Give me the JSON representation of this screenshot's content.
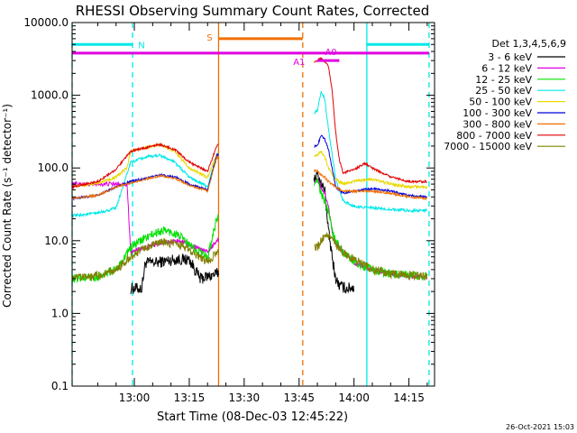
{
  "chart_data": {
    "type": "line",
    "title": "RHESSI Observing Summary Count Rates, Corrected",
    "xlabel": "Start Time (08-Dec-03 12:45:22)",
    "ylabel": "Corrected Count Rate (s⁻¹ detector⁻¹)",
    "y_scale": "log",
    "ylim": [
      0.1,
      10000
    ],
    "xlim_minutes": [
      -2,
      97
    ],
    "x_ticks": [
      {
        "label": "13:00",
        "t": 15
      },
      {
        "label": "13:15",
        "t": 30
      },
      {
        "label": "13:30",
        "t": 45
      },
      {
        "label": "13:45",
        "t": 60
      },
      {
        "label": "14:00",
        "t": 75
      },
      {
        "label": "14:15",
        "t": 90
      }
    ],
    "y_ticks": [
      {
        "label": "0.1",
        "v": 0.1
      },
      {
        "label": "1.0",
        "v": 1
      },
      {
        "label": "10.0",
        "v": 10
      },
      {
        "label": "100.0",
        "v": 100
      },
      {
        "label": "1000.0",
        "v": 1000
      },
      {
        "label": "10000.0",
        "v": 10000
      }
    ],
    "legend_title": "Det 1,3,4,5,6,9",
    "legend_position": "right",
    "gap_minutes": [
      38,
      64
    ],
    "series": [
      {
        "name": "3 - 6 keV",
        "color": "#000000",
        "noise": 0.16,
        "x": [
          14,
          17,
          18,
          21,
          26,
          30,
          33,
          37.5,
          65,
          66,
          67,
          68,
          69,
          70,
          71,
          72,
          73,
          75
        ],
        "y": [
          2.2,
          2.2,
          5,
          5,
          5.5,
          5.5,
          3,
          3.5,
          80,
          60,
          50,
          14,
          6,
          3,
          2.4,
          2.3,
          2.2,
          2.3
        ]
      },
      {
        "name": "6 - 12 keV",
        "color": "#e000e0",
        "noise": 0.06,
        "x": [
          -2,
          13,
          14,
          18,
          23,
          27,
          31,
          35,
          37.5,
          65,
          66,
          67,
          68,
          69,
          70,
          72,
          75,
          80,
          85,
          90,
          95
        ],
        "y": [
          60,
          60,
          7,
          8,
          9.5,
          10,
          8.5,
          7,
          10,
          70,
          55,
          45,
          30,
          14,
          9,
          7,
          5,
          4,
          3.5,
          3.2,
          3.2
        ]
      },
      {
        "name": "12 - 25 keV",
        "color": "#00e000",
        "noise": 0.12,
        "x": [
          -2,
          5,
          10,
          14,
          18,
          23,
          27,
          31,
          35,
          37.5,
          65,
          66,
          67,
          68,
          69,
          70,
          72,
          75,
          80,
          85,
          90,
          95
        ],
        "y": [
          3,
          3.2,
          4,
          8,
          11,
          14,
          12,
          8,
          6,
          20,
          65,
          45,
          35,
          25,
          14,
          10,
          7,
          5,
          4,
          3.5,
          3.3,
          3.2
        ]
      },
      {
        "name": "25 - 50 keV",
        "color": "#00e8e8",
        "noise": 0.04,
        "x": [
          -2,
          5,
          10,
          14,
          18,
          22,
          26,
          30,
          35,
          37.5,
          65,
          66,
          67,
          68,
          70,
          72,
          75,
          80,
          85,
          90,
          95
        ],
        "y": [
          22,
          24,
          28,
          120,
          140,
          150,
          120,
          75,
          55,
          150,
          600,
          1100,
          900,
          350,
          70,
          35,
          30,
          28,
          27,
          26,
          26
        ]
      },
      {
        "name": "50 - 100 keV",
        "color": "#e8d800",
        "noise": 0.04,
        "x": [
          -2,
          5,
          10,
          13,
          14,
          18,
          22,
          26,
          30,
          35,
          37.5,
          65,
          66,
          67,
          68,
          70,
          72,
          75,
          80,
          85,
          90,
          95
        ],
        "y": [
          55,
          62,
          75,
          100,
          170,
          190,
          210,
          170,
          100,
          75,
          150,
          150,
          170,
          140,
          100,
          70,
          60,
          65,
          70,
          60,
          55,
          55
        ]
      },
      {
        "name": "100 - 300 keV",
        "color": "#0000e0",
        "noise": 0.03,
        "x": [
          -2,
          5,
          10,
          14,
          18,
          22,
          26,
          30,
          35,
          37.5,
          65,
          66,
          67,
          68,
          70,
          72,
          75,
          80,
          85,
          90,
          95
        ],
        "y": [
          38,
          42,
          55,
          65,
          72,
          80,
          75,
          60,
          50,
          150,
          200,
          280,
          250,
          180,
          55,
          45,
          48,
          52,
          48,
          42,
          40
        ]
      },
      {
        "name": "300 - 800 keV",
        "color": "#f07000",
        "noise": 0.03,
        "x": [
          -2,
          5,
          10,
          14,
          18,
          22,
          26,
          30,
          35,
          37.5,
          65,
          66,
          67,
          68,
          70,
          72,
          75,
          80,
          85,
          90,
          95
        ],
        "y": [
          38,
          42,
          55,
          62,
          70,
          78,
          72,
          58,
          48,
          140,
          90,
          80,
          75,
          65,
          55,
          48,
          48,
          48,
          45,
          40,
          38
        ]
      },
      {
        "name": "800 - 7000 keV",
        "color": "#e00000",
        "noise": 0.03,
        "x": [
          -2,
          5,
          10,
          14,
          18,
          22,
          26,
          30,
          35,
          37.5,
          65,
          66,
          67,
          68,
          69,
          70,
          71,
          72,
          75,
          78,
          80,
          85,
          90,
          95
        ],
        "y": [
          55,
          65,
          95,
          170,
          190,
          210,
          180,
          120,
          90,
          200,
          3000,
          3200,
          2900,
          2500,
          1200,
          300,
          130,
          85,
          95,
          115,
          100,
          75,
          65,
          65
        ]
      },
      {
        "name": "7000 - 15000 keV",
        "color": "#808000",
        "noise": 0.12,
        "x": [
          -2,
          5,
          10,
          14,
          18,
          23,
          27,
          31,
          35,
          37.5,
          65,
          66,
          67,
          68,
          69,
          70,
          72,
          75,
          80,
          85,
          90,
          95
        ],
        "y": [
          3,
          3.3,
          4,
          6,
          8,
          9.5,
          9,
          7,
          5,
          7,
          8,
          10,
          12,
          11,
          10,
          9,
          7,
          5.5,
          4,
          3.5,
          3.3,
          3.2
        ]
      }
    ],
    "flags": [
      {
        "label": "N",
        "color": "#00e8e8",
        "segments": [
          [
            -2,
            14.5
          ],
          [
            78.5,
            95.5
          ]
        ],
        "level": 5000
      },
      {
        "label": "S",
        "color": "#f07000",
        "segments": [
          [
            38,
            61
          ]
        ],
        "level": 6000
      },
      {
        "label": "A1",
        "color": "#e000e0",
        "segments": [
          [
            -2,
            95.5
          ]
        ],
        "level": 3800
      },
      {
        "label": "A0",
        "color": "#e000e0",
        "segments": [
          [
            65,
            71
          ]
        ],
        "level": 3000
      }
    ],
    "markers": [
      {
        "t": -2,
        "color": "#00e8e8",
        "style": "dashed"
      },
      {
        "t": 14.5,
        "color": "#00e8e8",
        "style": "dashed"
      },
      {
        "t": 38,
        "color": "#f07000",
        "style": "solid"
      },
      {
        "t": 61,
        "color": "#f07000",
        "style": "dashed"
      },
      {
        "t": 78.5,
        "color": "#00e8e8",
        "style": "solid"
      },
      {
        "t": 95.5,
        "color": "#00e8e8",
        "style": "dashed"
      }
    ]
  },
  "footer": {
    "date_stamp": "26-Oct-2021 15:03"
  }
}
